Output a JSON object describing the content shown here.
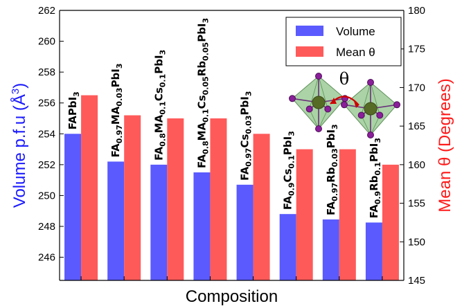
{
  "chart_data": {
    "type": "bar",
    "categories": [
      {
        "main": "FAPbI",
        "parts": [
          [
            "FAPbI",
            ""
          ],
          [
            "3",
            "sub"
          ]
        ]
      },
      {
        "main": "FA0.97MA0.03PbI3",
        "parts": [
          [
            "FA",
            ""
          ],
          [
            "0.97",
            "sub"
          ],
          [
            "MA",
            ""
          ],
          [
            "0.03",
            "sub"
          ],
          [
            "PbI",
            ""
          ],
          [
            "3",
            "sub"
          ]
        ]
      },
      {
        "main": "FA0.8MA0.1Cs0.1PbI3",
        "parts": [
          [
            "FA",
            ""
          ],
          [
            "0.8",
            "sub"
          ],
          [
            "MA",
            ""
          ],
          [
            "0.1",
            "sub"
          ],
          [
            "Cs",
            ""
          ],
          [
            "0.1",
            "sub"
          ],
          [
            "PbI",
            ""
          ],
          [
            "3",
            "sub"
          ]
        ]
      },
      {
        "main": "FA0.8MA0.1Cs0.05Rb0.05PbI3",
        "parts": [
          [
            "FA",
            ""
          ],
          [
            "0.8",
            "sub"
          ],
          [
            "MA",
            ""
          ],
          [
            "0.1",
            "sub"
          ],
          [
            "Cs",
            ""
          ],
          [
            "0.05",
            "sub"
          ],
          [
            "Rb",
            ""
          ],
          [
            "0.05",
            "sub"
          ],
          [
            "PbI",
            ""
          ],
          [
            "3",
            "sub"
          ]
        ]
      },
      {
        "main": "FA0.97Cs0.03PbI3",
        "parts": [
          [
            "FA",
            ""
          ],
          [
            "0.97",
            "sub"
          ],
          [
            "Cs",
            ""
          ],
          [
            "0.03",
            "sub"
          ],
          [
            "PbI",
            ""
          ],
          [
            "3",
            "sub"
          ]
        ]
      },
      {
        "main": "FA0.9Cs0.1PbI3",
        "parts": [
          [
            "FA",
            ""
          ],
          [
            "0.9",
            "sub"
          ],
          [
            "Cs",
            ""
          ],
          [
            "0.1",
            "sub"
          ],
          [
            "PbI",
            ""
          ],
          [
            "3",
            "sub"
          ]
        ]
      },
      {
        "main": "FA0.97Rb0.03PbI3",
        "parts": [
          [
            "FA",
            ""
          ],
          [
            "0.97",
            "sub"
          ],
          [
            "Rb",
            ""
          ],
          [
            "0.03",
            "sub"
          ],
          [
            "PbI",
            ""
          ],
          [
            "3",
            "sub"
          ]
        ]
      },
      {
        "main": "FA0.9Rb0.1PbI3",
        "parts": [
          [
            "FA",
            ""
          ],
          [
            "0.9",
            "sub"
          ],
          [
            "Rb",
            ""
          ],
          [
            "0.1",
            "sub"
          ],
          [
            "PbI",
            ""
          ],
          [
            "3",
            "sub"
          ]
        ]
      }
    ],
    "series": [
      {
        "name": "Volume",
        "axis": "left",
        "color": "#5a5aff",
        "values": [
          254.0,
          252.2,
          252.0,
          251.5,
          250.7,
          248.8,
          248.45,
          248.25
        ]
      },
      {
        "name": "Mean θ",
        "axis": "right",
        "color": "#ff5a5a",
        "values": [
          169.0,
          166.4,
          166.0,
          166.0,
          164.0,
          162.0,
          162.0,
          160.0
        ]
      }
    ],
    "left_axis": {
      "min": 244.5,
      "max": 262,
      "ticks": [
        246,
        248,
        250,
        252,
        254,
        256,
        258,
        260,
        262
      ],
      "label_main": "Volume p.f.u (Å",
      "label_sup": "3",
      "label_end": ")",
      "color": "#1a1aff"
    },
    "right_axis": {
      "min": 145,
      "max": 180,
      "ticks": [
        145,
        150,
        155,
        160,
        165,
        170,
        175,
        180
      ],
      "label": "Mean θ (Degrees)",
      "color": "#ff1a1a"
    },
    "xlabel": "Composition",
    "legend": {
      "placement": "top-right"
    },
    "inset_symbol": "θ"
  }
}
